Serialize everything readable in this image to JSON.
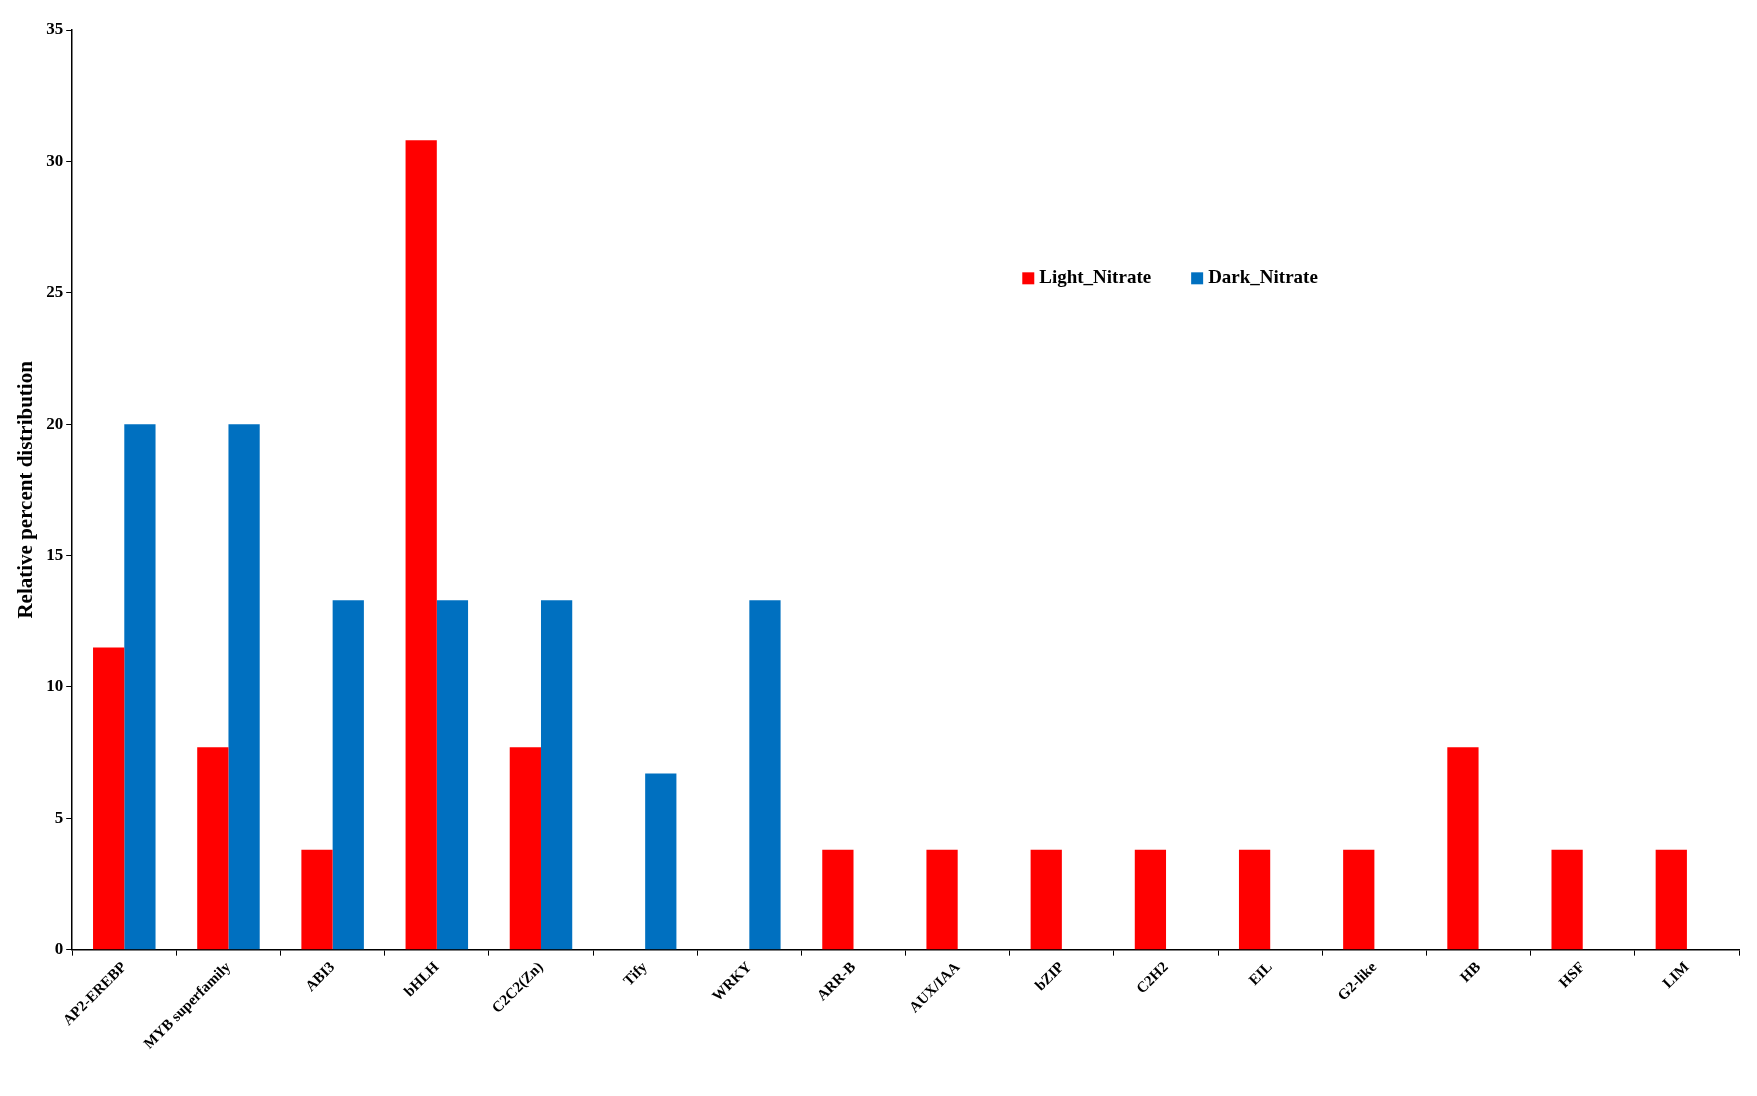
{
  "chart_data": {
    "type": "bar",
    "ylabel": "Relative percent distribution",
    "categories": [
      "AP2-EREBP",
      "MYB superfamily",
      "ABI3",
      "bHLH",
      "C2C2(Zn)",
      "Tify",
      "WRKY",
      "ARR-B",
      "AUX/IAA",
      "bZIP",
      "C2H2",
      "EIL",
      "G2-like",
      "HB",
      "HSF",
      "LIM"
    ],
    "series": [
      {
        "name": "Light_Nitrate",
        "color": "#ff0000",
        "values": [
          11.5,
          7.7,
          3.8,
          30.8,
          7.7,
          null,
          null,
          3.8,
          3.8,
          3.8,
          3.8,
          3.8,
          3.8,
          7.7,
          3.8,
          3.8
        ]
      },
      {
        "name": "Dark_Nitrate",
        "color": "#0070c0",
        "values": [
          20,
          20,
          13.3,
          13.3,
          13.3,
          6.7,
          13.3,
          null,
          null,
          null,
          null,
          null,
          null,
          null,
          null,
          null
        ]
      }
    ],
    "ylim": [
      0,
      35
    ],
    "yticks": [
      0,
      5,
      10,
      15,
      20,
      25,
      30,
      35
    ],
    "grid": false,
    "legend": "top right"
  }
}
